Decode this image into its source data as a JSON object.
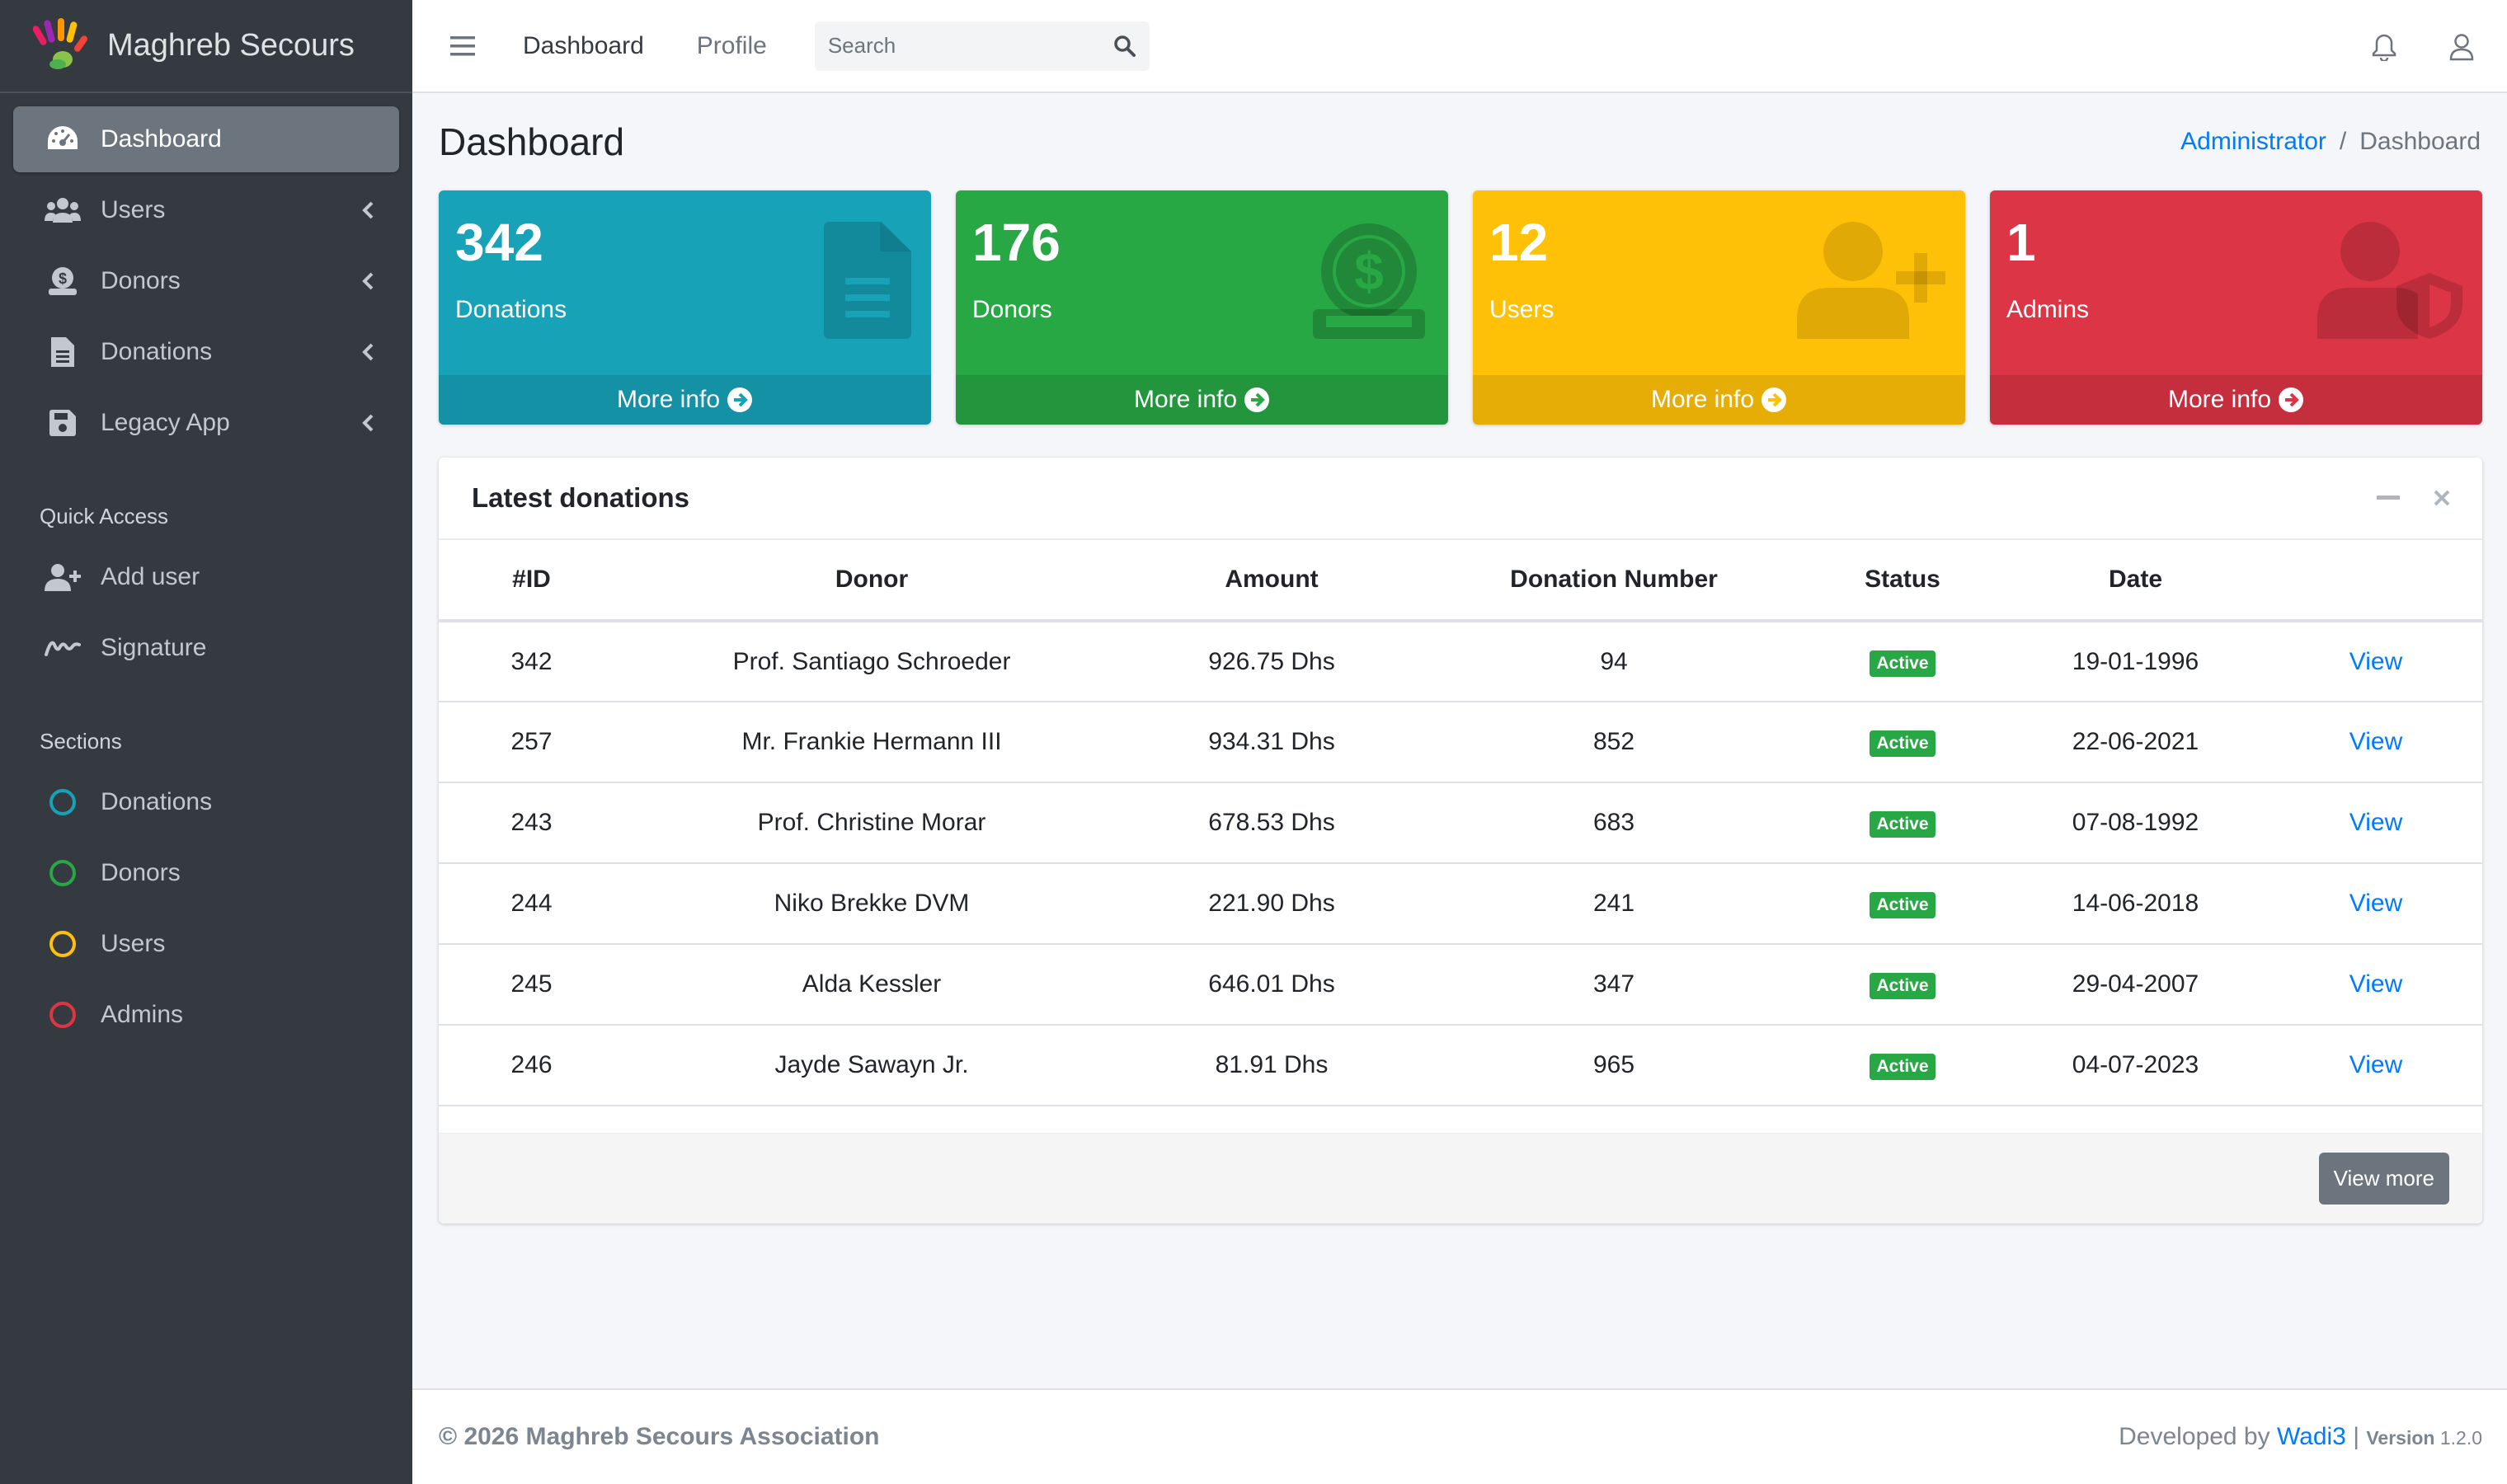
{
  "brand": {
    "name": "Maghreb Secours"
  },
  "sidebar": {
    "items": [
      {
        "label": "Dashboard",
        "icon": "dashboard-gauge-icon",
        "active": true
      },
      {
        "label": "Users",
        "icon": "users-icon"
      },
      {
        "label": "Donors",
        "icon": "donors-icon"
      },
      {
        "label": "Donations",
        "icon": "file-icon"
      },
      {
        "label": "Legacy App",
        "icon": "save-icon"
      }
    ],
    "quick_access_header": "Quick Access",
    "quick_access": [
      {
        "label": "Add user",
        "icon": "user-plus-icon"
      },
      {
        "label": "Signature",
        "icon": "signature-icon"
      }
    ],
    "sections_header": "Sections",
    "sections": [
      {
        "label": "Donations",
        "color": "#17a2b8"
      },
      {
        "label": "Donors",
        "color": "#28a745"
      },
      {
        "label": "Users",
        "color": "#ffc107"
      },
      {
        "label": "Admins",
        "color": "#dc3545"
      }
    ]
  },
  "topbar": {
    "links": [
      "Dashboard",
      "Profile"
    ],
    "search_placeholder": "Search"
  },
  "page": {
    "title": "Dashboard",
    "breadcrumb": [
      "Administrator",
      "Dashboard"
    ]
  },
  "cards": [
    {
      "value": "342",
      "label": "Donations",
      "footer": "More info",
      "color": "#17a2b8",
      "icon": "document-icon"
    },
    {
      "value": "176",
      "label": "Donors",
      "footer": "More info",
      "color": "#28a745",
      "icon": "dollar-hand-icon"
    },
    {
      "value": "12",
      "label": "Users",
      "footer": "More info",
      "color": "#ffc107",
      "icon": "user-plus-icon"
    },
    {
      "value": "1",
      "label": "Admins",
      "footer": "More info",
      "color": "#dc3545",
      "icon": "user-shield-icon"
    }
  ],
  "latest": {
    "title": "Latest donations",
    "columns": [
      "#ID",
      "Donor",
      "Amount",
      "Donation Number",
      "Status",
      "Date",
      ""
    ],
    "rows": [
      {
        "id": "342",
        "donor": "Prof. Santiago Schroeder",
        "amount": "926.75 Dhs",
        "number": "94",
        "status": "Active",
        "date": "19-01-1996",
        "action": "View"
      },
      {
        "id": "257",
        "donor": "Mr. Frankie Hermann III",
        "amount": "934.31 Dhs",
        "number": "852",
        "status": "Active",
        "date": "22-06-2021",
        "action": "View"
      },
      {
        "id": "243",
        "donor": "Prof. Christine Morar",
        "amount": "678.53 Dhs",
        "number": "683",
        "status": "Active",
        "date": "07-08-1992",
        "action": "View"
      },
      {
        "id": "244",
        "donor": "Niko Brekke DVM",
        "amount": "221.90 Dhs",
        "number": "241",
        "status": "Active",
        "date": "14-06-2018",
        "action": "View"
      },
      {
        "id": "245",
        "donor": "Alda Kessler",
        "amount": "646.01 Dhs",
        "number": "347",
        "status": "Active",
        "date": "29-04-2007",
        "action": "View"
      },
      {
        "id": "246",
        "donor": "Jayde Sawayn Jr.",
        "amount": "81.91 Dhs",
        "number": "965",
        "status": "Active",
        "date": "04-07-2023",
        "action": "View"
      }
    ],
    "view_more": "View more"
  },
  "footer": {
    "copyright": "© 2026 Maghreb Secours Association",
    "developed_by": "Developed by",
    "developer": "Wadi3",
    "separator": "|",
    "version_label": "Version",
    "version": "1.2.0"
  }
}
